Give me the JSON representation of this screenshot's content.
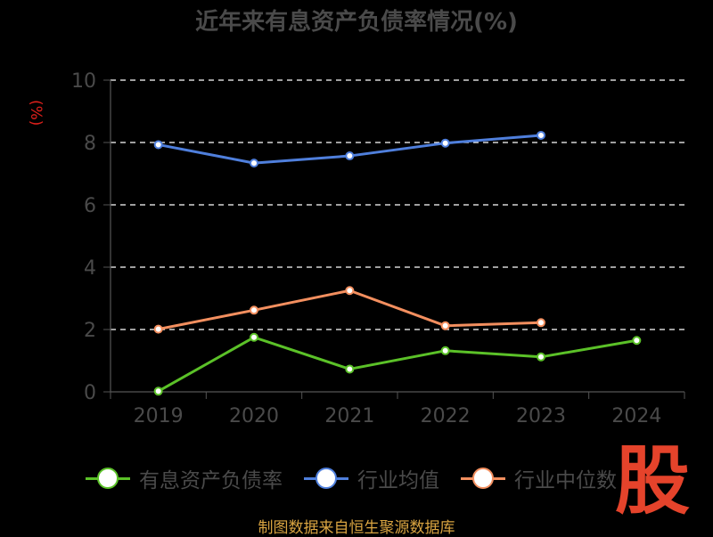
{
  "chart_data": {
    "type": "line",
    "title": "近年来有息资产负债率情况(%)",
    "ylabel": "(%)",
    "xlabel": "",
    "categories": [
      "2019",
      "2020",
      "2021",
      "2022",
      "2023",
      "2024"
    ],
    "ylim": [
      0,
      10
    ],
    "yticks": [
      0,
      2,
      4,
      6,
      8,
      10
    ],
    "grid": true,
    "legend_position": "bottom",
    "series": [
      {
        "name": "有息资产负债率",
        "color": "#5bc128",
        "values": [
          0.02,
          1.75,
          0.73,
          1.32,
          1.12,
          1.65
        ]
      },
      {
        "name": "行业均值",
        "color": "#4f7fdc",
        "values": [
          7.93,
          7.34,
          7.57,
          7.98,
          8.23,
          null
        ]
      },
      {
        "name": "行业中位数",
        "color": "#f38f5f",
        "values": [
          2.01,
          2.62,
          3.25,
          2.12,
          2.22,
          null
        ]
      }
    ]
  },
  "watermark": "股",
  "source": "制图数据来自恒生聚源数据库"
}
